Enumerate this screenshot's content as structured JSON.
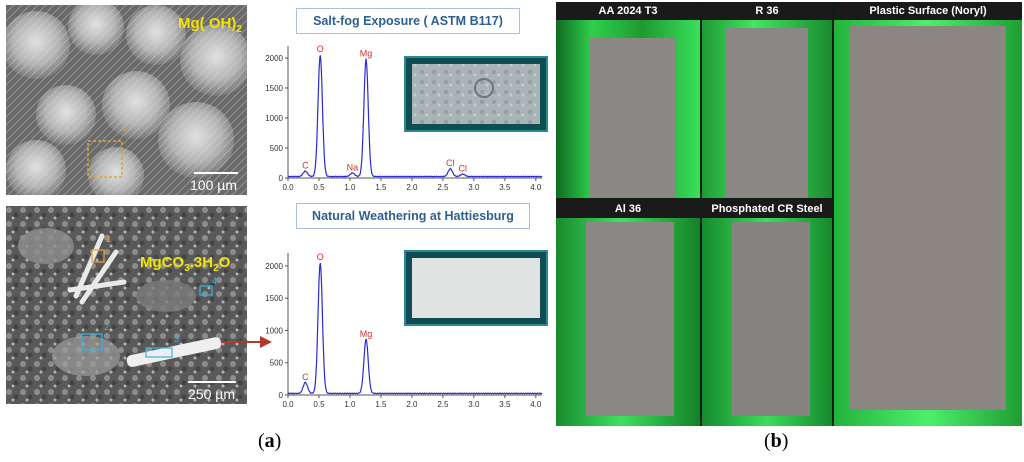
{
  "panel_a": {
    "sem_top": {
      "formula_main": "Mg( OH)",
      "formula_sub": "2",
      "scale_label": "100 µm",
      "roi_marker": "+"
    },
    "sem_bottom": {
      "formula_a": "MgCO",
      "formula_sub1": "3",
      "formula_b": ".3H",
      "formula_sub2": "2",
      "formula_c": "O",
      "scale_label": "250 µm",
      "roi_labels": [
        "1",
        "2",
        "3",
        "4"
      ]
    },
    "spectrum_top": {
      "title": "Salt-fog Exposure ( ASTM B117)"
    },
    "spectrum_bottom": {
      "title": "Natural Weathering at Hattiesburg"
    },
    "caption_open": "(",
    "caption_letter": "a",
    "caption_close": ")"
  },
  "panel_b": {
    "samples": [
      {
        "label": "AA 2024 T3"
      },
      {
        "label": "R 36"
      },
      {
        "label": "Plastic Surface (Noryl)"
      },
      {
        "label": "Al 36"
      },
      {
        "label": "Phosphated CR Steel"
      }
    ],
    "caption_open": "(",
    "caption_letter": "b",
    "caption_close": ")"
  },
  "chart_data": [
    {
      "type": "line",
      "title": "Salt-fog Exposure ( ASTM B117)",
      "xlabel": "",
      "ylabel": "",
      "xlim": [
        0,
        4.1
      ],
      "ylim": [
        0,
        2200
      ],
      "x_ticks": [
        "0.0",
        "0.5",
        "1.0",
        "1.5",
        "2.0",
        "2.5",
        "3.0",
        "3.5",
        "4.0"
      ],
      "y_ticks": [
        "0",
        "500",
        "1000",
        "1500",
        "2000"
      ],
      "peaks": [
        {
          "label": "C",
          "x": 0.28,
          "y": 90
        },
        {
          "label": "O",
          "x": 0.52,
          "y": 2030
        },
        {
          "label": "Na",
          "x": 1.04,
          "y": 60
        },
        {
          "label": "Mg",
          "x": 1.26,
          "y": 1960
        },
        {
          "label": "Cl",
          "x": 2.62,
          "y": 130
        },
        {
          "label": "Cl",
          "x": 2.82,
          "y": 40
        }
      ],
      "color": "#2b2bd6",
      "label_color": "#d03030"
    },
    {
      "type": "line",
      "title": "Natural Weathering at Hattiesburg",
      "xlabel": "",
      "ylabel": "",
      "xlim": [
        0,
        4.1
      ],
      "ylim": [
        0,
        2200
      ],
      "x_ticks": [
        "0.0",
        "0.5",
        "1.0",
        "1.5",
        "2.0",
        "2.5",
        "3.0",
        "3.5",
        "4.0"
      ],
      "y_ticks": [
        "0",
        "500",
        "1000",
        "1500",
        "2000"
      ],
      "peaks": [
        {
          "label": "C",
          "x": 0.28,
          "y": 170
        },
        {
          "label": "O",
          "x": 0.52,
          "y": 2030
        },
        {
          "label": "Mg",
          "x": 1.26,
          "y": 840
        }
      ],
      "color": "#2b2bd6",
      "label_color": "#d03030"
    }
  ]
}
